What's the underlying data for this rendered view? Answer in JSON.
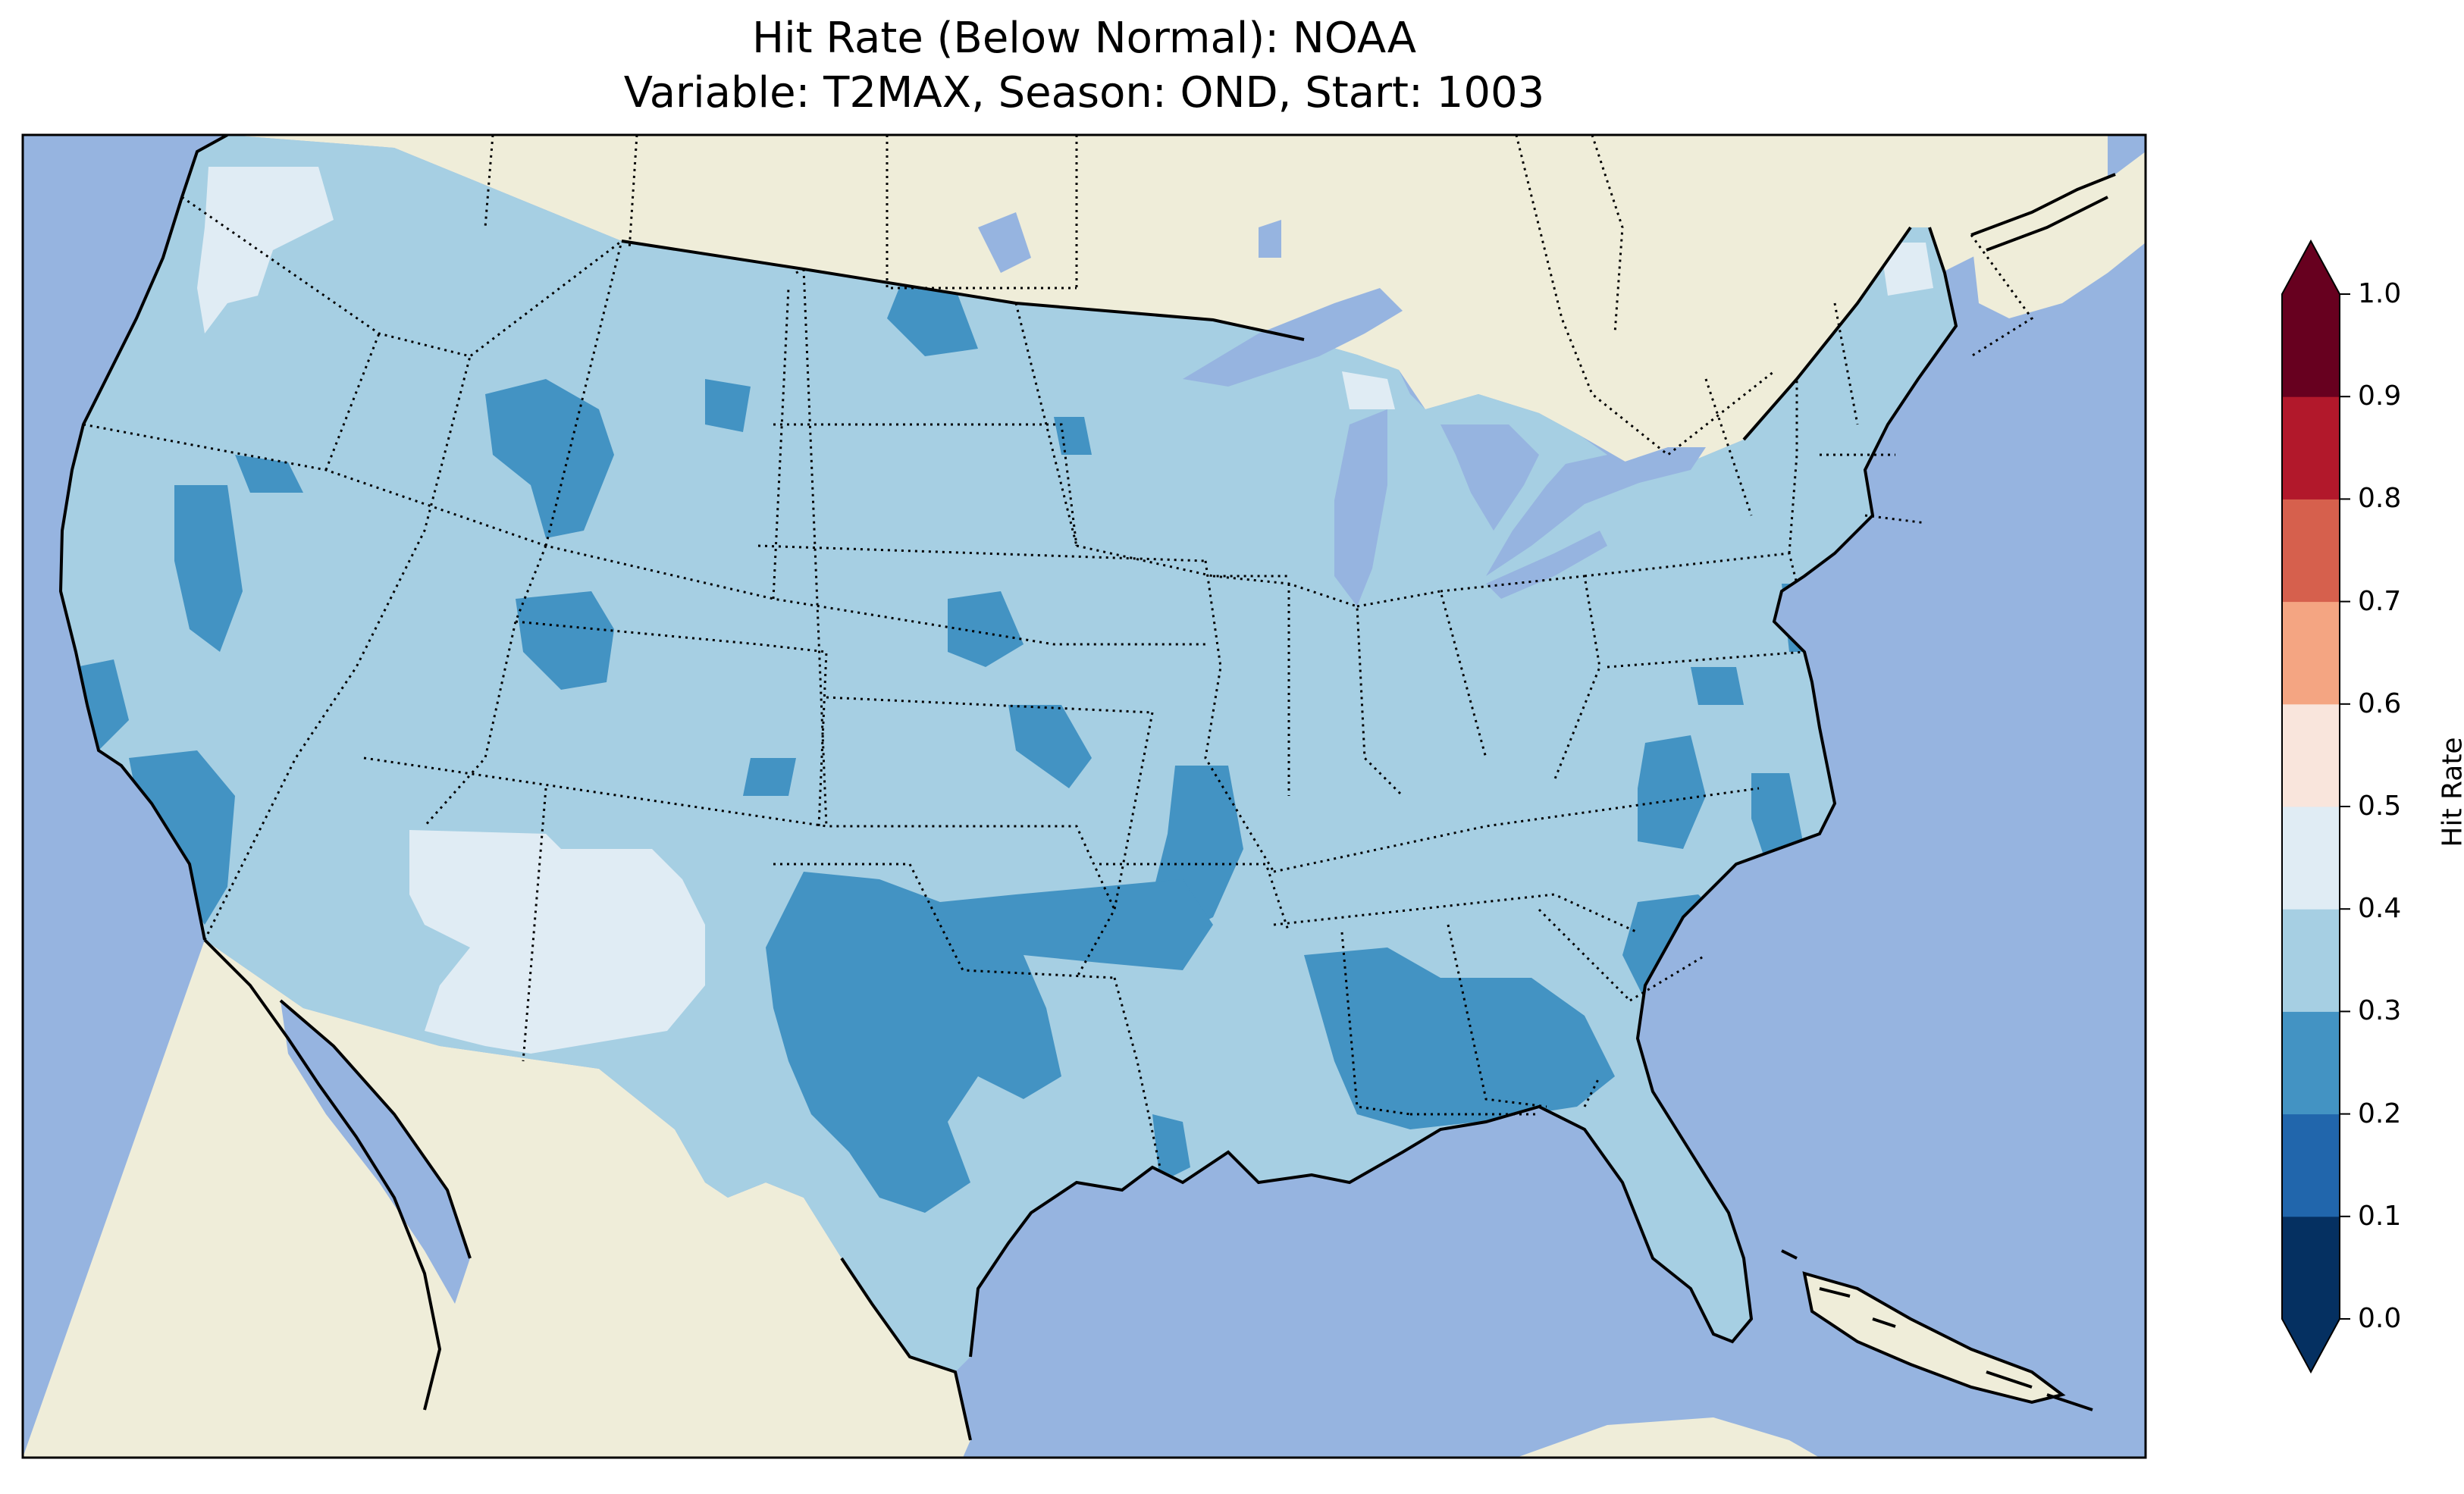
{
  "title_line1": "Hit Rate (Below Normal): NOAA",
  "title_line2": "Variable: T2MAX, Season: OND, Start: 1003",
  "colorbar": {
    "label": "Hit Rate",
    "ticks": [
      "0.0",
      "0.1",
      "0.2",
      "0.3",
      "0.4",
      "0.5",
      "0.6",
      "0.7",
      "0.8",
      "0.9",
      "1.0"
    ],
    "bins": [
      {
        "range": "0.0-0.1",
        "color": "#053061"
      },
      {
        "range": "0.1-0.2",
        "color": "#2166ac"
      },
      {
        "range": "0.2-0.3",
        "color": "#4393c3"
      },
      {
        "range": "0.3-0.4",
        "color": "#a6cfe3"
      },
      {
        "range": "0.4-0.5",
        "color": "#e0ecf4"
      },
      {
        "range": "0.5-0.6",
        "color": "#f9e5dc"
      },
      {
        "range": "0.6-0.7",
        "color": "#f4a582"
      },
      {
        "range": "0.7-0.8",
        "color": "#d6604d"
      },
      {
        "range": "0.8-0.9",
        "color": "#b2182b"
      },
      {
        "range": "0.9-1.0",
        "color": "#67001f"
      }
    ],
    "extend": "both"
  },
  "map": {
    "region": "Contiguous United States",
    "ocean_color": "#96b4e0",
    "land_color": "#efedd9",
    "dominant_value_range": "0.3-0.4",
    "lower_patch_range": "0.2-0.3",
    "higher_patch_range": "0.4-0.5"
  }
}
